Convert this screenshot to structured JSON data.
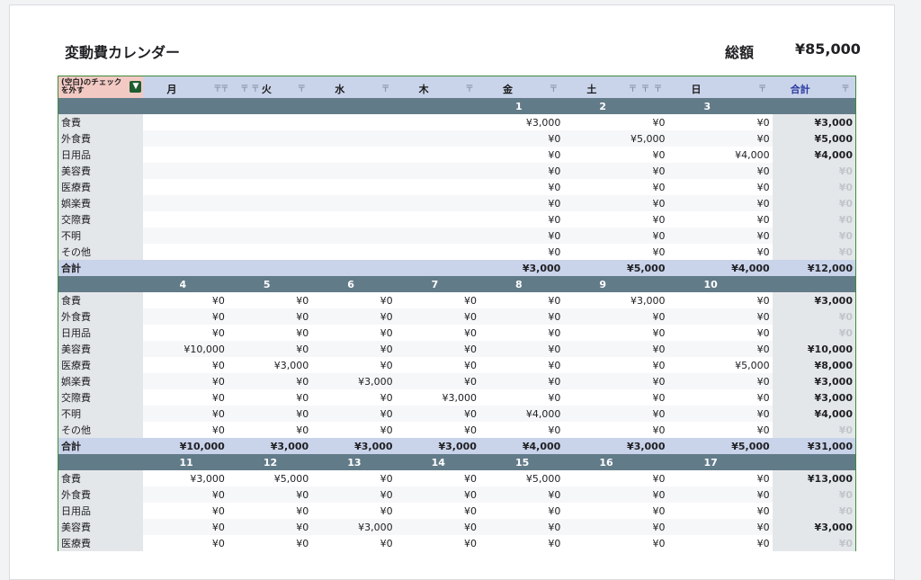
{
  "title": "変動費カレンダー",
  "total_label": "総額",
  "total_value": "¥85,000",
  "header": {
    "corner": "(空白)のチェックを外す",
    "filter_glyph": "▼",
    "sort_glyph": "〒",
    "days": [
      "月",
      "火",
      "水",
      "木",
      "金",
      "土",
      "日"
    ],
    "total": "合計"
  },
  "categories": [
    "食費",
    "外食費",
    "日用品",
    "美容費",
    "医療費",
    "娯楽費",
    "交際費",
    "不明",
    "その他"
  ],
  "total_row_label": "合計",
  "weeks": [
    {
      "dates": [
        "",
        "",
        "",
        "",
        "1",
        "2",
        "3"
      ],
      "rows": [
        [
          "",
          "",
          "",
          "",
          "¥3,000",
          "¥0",
          "¥0",
          "¥3,000"
        ],
        [
          "",
          "",
          "",
          "",
          "¥0",
          "¥5,000",
          "¥0",
          "¥5,000"
        ],
        [
          "",
          "",
          "",
          "",
          "¥0",
          "¥0",
          "¥4,000",
          "¥4,000"
        ],
        [
          "",
          "",
          "",
          "",
          "¥0",
          "¥0",
          "¥0",
          "¥0"
        ],
        [
          "",
          "",
          "",
          "",
          "¥0",
          "¥0",
          "¥0",
          "¥0"
        ],
        [
          "",
          "",
          "",
          "",
          "¥0",
          "¥0",
          "¥0",
          "¥0"
        ],
        [
          "",
          "",
          "",
          "",
          "¥0",
          "¥0",
          "¥0",
          "¥0"
        ],
        [
          "",
          "",
          "",
          "",
          "¥0",
          "¥0",
          "¥0",
          "¥0"
        ],
        [
          "",
          "",
          "",
          "",
          "¥0",
          "¥0",
          "¥0",
          "¥0"
        ]
      ],
      "totals": [
        "",
        "",
        "",
        "",
        "¥3,000",
        "¥5,000",
        "¥4,000",
        "¥12,000"
      ]
    },
    {
      "dates": [
        "4",
        "5",
        "6",
        "7",
        "8",
        "9",
        "10"
      ],
      "rows": [
        [
          "¥0",
          "¥0",
          "¥0",
          "¥0",
          "¥0",
          "¥3,000",
          "¥0",
          "¥3,000"
        ],
        [
          "¥0",
          "¥0",
          "¥0",
          "¥0",
          "¥0",
          "¥0",
          "¥0",
          "¥0"
        ],
        [
          "¥0",
          "¥0",
          "¥0",
          "¥0",
          "¥0",
          "¥0",
          "¥0",
          "¥0"
        ],
        [
          "¥10,000",
          "¥0",
          "¥0",
          "¥0",
          "¥0",
          "¥0",
          "¥0",
          "¥10,000"
        ],
        [
          "¥0",
          "¥3,000",
          "¥0",
          "¥0",
          "¥0",
          "¥0",
          "¥5,000",
          "¥8,000"
        ],
        [
          "¥0",
          "¥0",
          "¥3,000",
          "¥0",
          "¥0",
          "¥0",
          "¥0",
          "¥3,000"
        ],
        [
          "¥0",
          "¥0",
          "¥0",
          "¥3,000",
          "¥0",
          "¥0",
          "¥0",
          "¥3,000"
        ],
        [
          "¥0",
          "¥0",
          "¥0",
          "¥0",
          "¥4,000",
          "¥0",
          "¥0",
          "¥4,000"
        ],
        [
          "¥0",
          "¥0",
          "¥0",
          "¥0",
          "¥0",
          "¥0",
          "¥0",
          "¥0"
        ]
      ],
      "totals": [
        "¥10,000",
        "¥3,000",
        "¥3,000",
        "¥3,000",
        "¥4,000",
        "¥3,000",
        "¥5,000",
        "¥31,000"
      ]
    },
    {
      "dates": [
        "11",
        "12",
        "13",
        "14",
        "15",
        "16",
        "17"
      ],
      "rows": [
        [
          "¥3,000",
          "¥5,000",
          "¥0",
          "¥0",
          "¥5,000",
          "¥0",
          "¥0",
          "¥13,000"
        ],
        [
          "¥0",
          "¥0",
          "¥0",
          "¥0",
          "¥0",
          "¥0",
          "¥0",
          "¥0"
        ],
        [
          "¥0",
          "¥0",
          "¥0",
          "¥0",
          "¥0",
          "¥0",
          "¥0",
          "¥0"
        ],
        [
          "¥0",
          "¥0",
          "¥3,000",
          "¥0",
          "¥0",
          "¥0",
          "¥0",
          "¥3,000"
        ],
        [
          "¥0",
          "¥0",
          "¥0",
          "¥0",
          "¥0",
          "¥0",
          "¥0",
          "¥0"
        ]
      ],
      "totals": []
    }
  ]
}
